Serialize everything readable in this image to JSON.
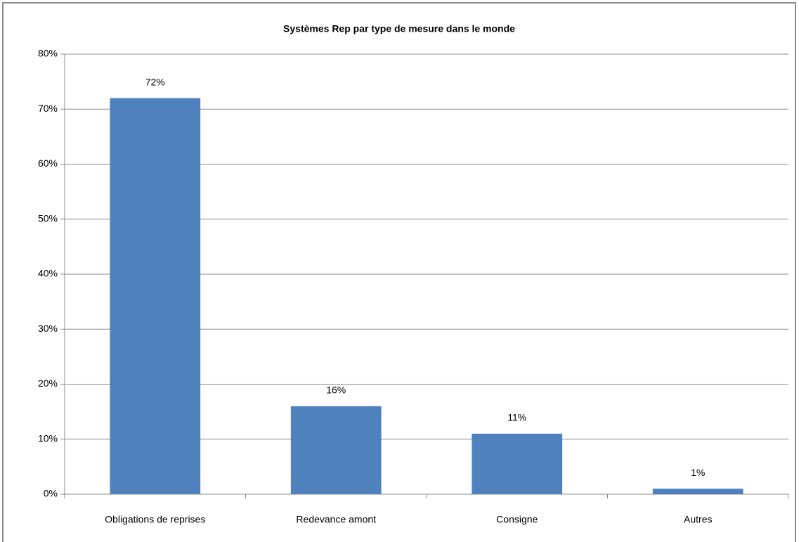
{
  "chart_data": {
    "type": "bar",
    "title": "Systèmes Rep par type de mesure dans le monde",
    "categories": [
      "Obligations de reprises",
      "Redevance amont",
      "Consigne",
      "Autres"
    ],
    "values": [
      72,
      16,
      11,
      1
    ],
    "value_labels": [
      "72%",
      "16%",
      "11%",
      "1%"
    ],
    "color": "#4f81bd",
    "ylim": [
      0,
      80
    ],
    "yticks": [
      {
        "value": 0,
        "label": "0%"
      },
      {
        "value": 10,
        "label": "10%"
      },
      {
        "value": 20,
        "label": "20%"
      },
      {
        "value": 30,
        "label": "30%"
      },
      {
        "value": 40,
        "label": "40%"
      },
      {
        "value": 50,
        "label": "50%"
      },
      {
        "value": 60,
        "label": "60%"
      },
      {
        "value": 70,
        "label": "70%"
      },
      {
        "value": 80,
        "label": "80%"
      }
    ],
    "grid": true
  }
}
